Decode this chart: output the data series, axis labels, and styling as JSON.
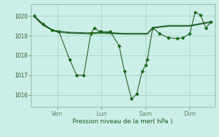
{
  "background_color": "#cceee8",
  "grid_color": "#99ccbb",
  "line_color": "#1a5c1a",
  "marker_color": "#1a6c1a",
  "xlabel": "Pression niveau de la mer( hPa )",
  "yticks": [
    1016,
    1017,
    1018,
    1019,
    1020
  ],
  "ylim": [
    1015.4,
    1020.6
  ],
  "xtick_labels": [
    "Ven",
    "Lun",
    "Sam",
    "Dim"
  ],
  "xtick_positions": [
    0.13,
    0.38,
    0.63,
    0.88
  ],
  "series1": [
    [
      0.0,
      1020.0
    ],
    [
      0.05,
      1019.6
    ],
    [
      0.1,
      1019.3
    ],
    [
      0.14,
      1019.2
    ],
    [
      0.2,
      1017.8
    ],
    [
      0.24,
      1017.0
    ],
    [
      0.28,
      1017.0
    ],
    [
      0.32,
      1019.1
    ],
    [
      0.34,
      1019.4
    ],
    [
      0.37,
      1019.2
    ],
    [
      0.38,
      1019.2
    ],
    [
      0.43,
      1019.2
    ],
    [
      0.48,
      1018.5
    ],
    [
      0.51,
      1017.2
    ],
    [
      0.55,
      1015.8
    ],
    [
      0.58,
      1016.05
    ],
    [
      0.61,
      1017.2
    ],
    [
      0.63,
      1017.5
    ],
    [
      0.64,
      1017.8
    ],
    [
      0.67,
      1019.4
    ],
    [
      0.71,
      1019.1
    ],
    [
      0.76,
      1018.9
    ],
    [
      0.81,
      1018.85
    ],
    [
      0.84,
      1018.9
    ],
    [
      0.88,
      1019.1
    ],
    [
      0.91,
      1020.2
    ],
    [
      0.94,
      1020.05
    ],
    [
      0.97,
      1019.4
    ],
    [
      1.0,
      1019.7
    ]
  ],
  "series2": [
    [
      0.0,
      1020.0
    ],
    [
      0.05,
      1019.55
    ],
    [
      0.1,
      1019.3
    ],
    [
      0.13,
      1019.25
    ],
    [
      0.2,
      1019.15
    ],
    [
      0.3,
      1019.1
    ],
    [
      0.38,
      1019.15
    ],
    [
      0.51,
      1019.1
    ],
    [
      0.64,
      1019.1
    ],
    [
      0.67,
      1019.4
    ],
    [
      0.76,
      1019.5
    ],
    [
      0.88,
      1019.5
    ],
    [
      1.0,
      1019.7
    ]
  ],
  "series3": [
    [
      0.0,
      1020.0
    ],
    [
      0.05,
      1019.58
    ],
    [
      0.1,
      1019.32
    ],
    [
      0.13,
      1019.22
    ],
    [
      0.2,
      1019.18
    ],
    [
      0.3,
      1019.15
    ],
    [
      0.38,
      1019.18
    ],
    [
      0.51,
      1019.12
    ],
    [
      0.64,
      1019.12
    ],
    [
      0.67,
      1019.42
    ],
    [
      0.76,
      1019.52
    ],
    [
      0.88,
      1019.52
    ],
    [
      1.0,
      1019.72
    ]
  ],
  "series4": [
    [
      0.0,
      1019.95
    ],
    [
      0.05,
      1019.52
    ],
    [
      0.1,
      1019.28
    ],
    [
      0.13,
      1019.18
    ],
    [
      0.2,
      1019.12
    ],
    [
      0.3,
      1019.1
    ],
    [
      0.38,
      1019.12
    ],
    [
      0.51,
      1019.08
    ],
    [
      0.64,
      1019.08
    ],
    [
      0.67,
      1019.38
    ],
    [
      0.76,
      1019.48
    ],
    [
      0.88,
      1019.48
    ],
    [
      1.0,
      1019.68
    ]
  ]
}
